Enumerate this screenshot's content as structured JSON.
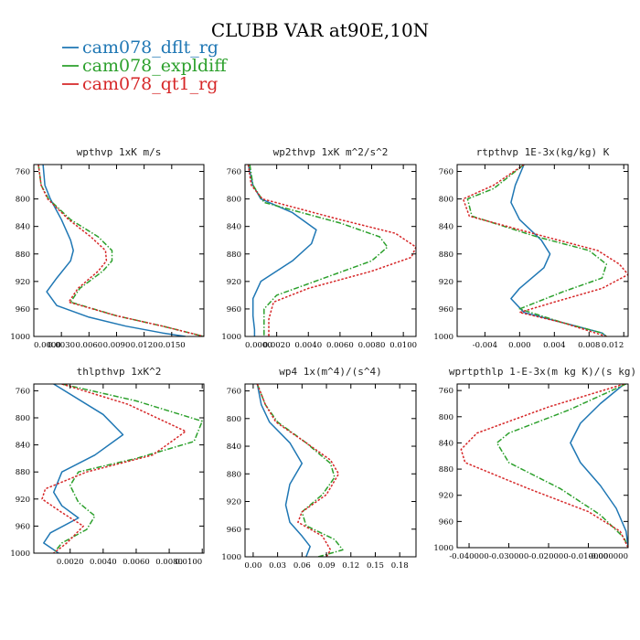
{
  "figure": {
    "title": "CLUBB VAR at90E,10N",
    "legend": [
      {
        "name": "cam078_dflt_rg",
        "color": "#1f77b4",
        "dash": "solid"
      },
      {
        "name": "cam078_expldiff",
        "color": "#2ca02c",
        "dash": "dashdot"
      },
      {
        "name": "cam078_qt1_rg",
        "color": "#d62728",
        "dash": "dotted"
      }
    ]
  },
  "chart_data": [
    {
      "type": "line",
      "title": "wpthvp  1xK m/s",
      "xlim": [
        0,
        0.0185
      ],
      "ylim": [
        1000,
        750
      ],
      "xticks": [
        0.0,
        0.003,
        0.006,
        0.009,
        0.012,
        0.015
      ],
      "xticklabels": [
        "0.0000",
        "0.0030",
        "0.0060",
        "0.0090",
        "0.0120",
        "0.0150"
      ],
      "yticks": [
        760,
        800,
        840,
        880,
        920,
        960,
        1000
      ],
      "series": [
        {
          "points": [
            [
              0.001,
              750
            ],
            [
              0.0012,
              780
            ],
            [
              0.0018,
              800
            ],
            [
              0.003,
              830
            ],
            [
              0.004,
              860
            ],
            [
              0.0043,
              875
            ],
            [
              0.004,
              890
            ],
            [
              0.0025,
              915
            ],
            [
              0.0014,
              935
            ],
            [
              0.0025,
              955
            ],
            [
              0.006,
              972
            ],
            [
              0.01,
              985
            ],
            [
              0.014,
              995
            ],
            [
              0.0165,
              1000
            ]
          ]
        },
        {
          "points": [
            [
              0.0005,
              750
            ],
            [
              0.0008,
              780
            ],
            [
              0.0016,
              800
            ],
            [
              0.004,
              830
            ],
            [
              0.007,
              855
            ],
            [
              0.0085,
              875
            ],
            [
              0.0085,
              890
            ],
            [
              0.0075,
              905
            ],
            [
              0.005,
              930
            ],
            [
              0.004,
              950
            ],
            [
              0.009,
              970
            ],
            [
              0.014,
              985
            ],
            [
              0.0185,
              1000
            ]
          ]
        },
        {
          "points": [
            [
              0.0005,
              750
            ],
            [
              0.0008,
              780
            ],
            [
              0.0015,
              800
            ],
            [
              0.0038,
              830
            ],
            [
              0.0062,
              855
            ],
            [
              0.0078,
              875
            ],
            [
              0.0079,
              890
            ],
            [
              0.007,
              905
            ],
            [
              0.0048,
              930
            ],
            [
              0.0038,
              950
            ],
            [
              0.009,
              970
            ],
            [
              0.014,
              985
            ],
            [
              0.0185,
              1000
            ]
          ]
        }
      ]
    },
    {
      "type": "line",
      "title": "wp2thvp  1xK m^2/s^2",
      "xlim": [
        0,
        0.0108
      ],
      "ylim": [
        1000,
        750
      ],
      "xticks": [
        0.0,
        0.002,
        0.004,
        0.006,
        0.008,
        0.01
      ],
      "xticklabels": [
        "0.0000",
        "0.0020",
        "0.0040",
        "0.0060",
        "0.0080",
        "0.0100"
      ],
      "yticks": [
        760,
        800,
        840,
        880,
        920,
        960,
        1000
      ],
      "series": [
        {
          "points": [
            [
              0.0002,
              750
            ],
            [
              0.0005,
              780
            ],
            [
              0.001,
              800
            ],
            [
              0.003,
              820
            ],
            [
              0.0045,
              845
            ],
            [
              0.0042,
              865
            ],
            [
              0.003,
              890
            ],
            [
              0.001,
              920
            ],
            [
              0.0005,
              945
            ],
            [
              0.0005,
              970
            ],
            [
              0.0006,
              990
            ],
            [
              0.0006,
              1000
            ]
          ]
        },
        {
          "points": [
            [
              0.0003,
              750
            ],
            [
              0.0005,
              780
            ],
            [
              0.0012,
              805
            ],
            [
              0.006,
              835
            ],
            [
              0.0085,
              855
            ],
            [
              0.009,
              870
            ],
            [
              0.008,
              890
            ],
            [
              0.005,
              915
            ],
            [
              0.002,
              940
            ],
            [
              0.0012,
              960
            ],
            [
              0.0012,
              980
            ],
            [
              0.0012,
              1000
            ]
          ]
        },
        {
          "points": [
            [
              0.0002,
              750
            ],
            [
              0.0004,
              780
            ],
            [
              0.0011,
              800
            ],
            [
              0.006,
              830
            ],
            [
              0.0095,
              850
            ],
            [
              0.0108,
              870
            ],
            [
              0.0105,
              885
            ],
            [
              0.008,
              905
            ],
            [
              0.004,
              930
            ],
            [
              0.0018,
              950
            ],
            [
              0.0015,
              975
            ],
            [
              0.0015,
              1000
            ]
          ]
        }
      ]
    },
    {
      "type": "line",
      "title": "rtpthvp  1E-3x(kg/kg) K",
      "xlim": [
        -0.0072,
        0.0125
      ],
      "ylim": [
        1000,
        750
      ],
      "xticks": [
        -0.004,
        0.0,
        0.004,
        0.008,
        0.012
      ],
      "xticklabels": [
        "-0.004",
        "0.000",
        "0.004",
        "0.008",
        "0.012"
      ],
      "yticks": [
        760,
        800,
        840,
        880,
        920,
        960,
        1000
      ],
      "series": [
        {
          "points": [
            [
              0.0005,
              750
            ],
            [
              -0.0005,
              780
            ],
            [
              -0.001,
              805
            ],
            [
              0.0,
              830
            ],
            [
              0.0025,
              860
            ],
            [
              0.0035,
              880
            ],
            [
              0.0028,
              900
            ],
            [
              0.0,
              930
            ],
            [
              -0.001,
              945
            ],
            [
              0.0005,
              965
            ],
            [
              0.005,
              980
            ],
            [
              0.0095,
              995
            ],
            [
              0.01,
              1000
            ]
          ]
        },
        {
          "points": [
            [
              0.0005,
              750
            ],
            [
              -0.003,
              785
            ],
            [
              -0.006,
              800
            ],
            [
              -0.0055,
              825
            ],
            [
              0.002,
              855
            ],
            [
              0.008,
              875
            ],
            [
              0.01,
              895
            ],
            [
              0.0095,
              915
            ],
            [
              0.005,
              935
            ],
            [
              0.0,
              960
            ],
            [
              0.005,
              980
            ],
            [
              0.0095,
              995
            ],
            [
              0.01,
              1000
            ]
          ]
        },
        {
          "points": [
            [
              0.0005,
              750
            ],
            [
              -0.003,
              780
            ],
            [
              -0.0065,
              800
            ],
            [
              -0.0058,
              825
            ],
            [
              0.003,
              855
            ],
            [
              0.009,
              875
            ],
            [
              0.0115,
              895
            ],
            [
              0.0125,
              910
            ],
            [
              0.0095,
              930
            ],
            [
              0.004,
              950
            ],
            [
              0.0,
              965
            ],
            [
              0.005,
              980
            ],
            [
              0.01,
              1000
            ]
          ]
        }
      ]
    },
    {
      "type": "line",
      "title": "thlpthvp  1xK^2",
      "xlim": [
        -0.0002,
        0.0101
      ],
      "ylim": [
        1000,
        750
      ],
      "xticks": [
        0.002,
        0.004,
        0.006,
        0.008,
        0.01
      ],
      "xticklabels": [
        "0.0020",
        "0.0040",
        "0.0060",
        "0.0080",
        "0.0100"
      ],
      "yticks": [
        760,
        800,
        840,
        880,
        920,
        960,
        1000
      ],
      "series": [
        {
          "points": [
            [
              0.001,
              750
            ],
            [
              0.004,
              795
            ],
            [
              0.0052,
              825
            ],
            [
              0.0035,
              855
            ],
            [
              0.0015,
              880
            ],
            [
              0.001,
              910
            ],
            [
              0.0015,
              930
            ],
            [
              0.0025,
              948
            ],
            [
              0.0008,
              970
            ],
            [
              0.0004,
              985
            ],
            [
              0.001,
              995
            ],
            [
              0.0013,
              1000
            ]
          ]
        },
        {
          "points": [
            [
              0.0015,
              750
            ],
            [
              0.006,
              775
            ],
            [
              0.01,
              805
            ],
            [
              0.0095,
              835
            ],
            [
              0.006,
              860
            ],
            [
              0.0025,
              880
            ],
            [
              0.002,
              900
            ],
            [
              0.0025,
              925
            ],
            [
              0.0035,
              945
            ],
            [
              0.003,
              965
            ],
            [
              0.0015,
              985
            ],
            [
              0.001,
              1000
            ]
          ]
        },
        {
          "points": [
            [
              0.0015,
              750
            ],
            [
              0.0055,
              780
            ],
            [
              0.009,
              820
            ],
            [
              0.007,
              855
            ],
            [
              0.003,
              880
            ],
            [
              0.0005,
              905
            ],
            [
              0.0003,
              920
            ],
            [
              0.0015,
              940
            ],
            [
              0.0028,
              960
            ],
            [
              0.0018,
              985
            ],
            [
              0.001,
              1000
            ]
          ]
        }
      ]
    },
    {
      "type": "line",
      "title": "wp4  1x(m^4)/(s^4)",
      "xlim": [
        -0.01,
        0.2
      ],
      "ylim": [
        1000,
        750
      ],
      "xticks": [
        0.0,
        0.03,
        0.06,
        0.09,
        0.12,
        0.15,
        0.18
      ],
      "xticklabels": [
        "0.00",
        "0.03",
        "0.06",
        "0.09",
        "0.12",
        "0.15",
        "0.18"
      ],
      "yticks": [
        760,
        800,
        840,
        880,
        920,
        960,
        1000
      ],
      "series": [
        {
          "points": [
            [
              0.005,
              750
            ],
            [
              0.01,
              780
            ],
            [
              0.02,
              805
            ],
            [
              0.045,
              835
            ],
            [
              0.06,
              865
            ],
            [
              0.045,
              895
            ],
            [
              0.04,
              925
            ],
            [
              0.045,
              950
            ],
            [
              0.06,
              970
            ],
            [
              0.07,
              985
            ],
            [
              0.065,
              1000
            ]
          ]
        },
        {
          "points": [
            [
              0.005,
              750
            ],
            [
              0.015,
              780
            ],
            [
              0.03,
              805
            ],
            [
              0.065,
              835
            ],
            [
              0.095,
              865
            ],
            [
              0.1,
              885
            ],
            [
              0.085,
              910
            ],
            [
              0.06,
              935
            ],
            [
              0.065,
              955
            ],
            [
              0.1,
              975
            ],
            [
              0.11,
              990
            ],
            [
              0.08,
              1000
            ]
          ]
        },
        {
          "points": [
            [
              0.005,
              750
            ],
            [
              0.015,
              780
            ],
            [
              0.028,
              805
            ],
            [
              0.065,
              835
            ],
            [
              0.095,
              860
            ],
            [
              0.105,
              880
            ],
            [
              0.09,
              910
            ],
            [
              0.06,
              935
            ],
            [
              0.055,
              950
            ],
            [
              0.085,
              970
            ],
            [
              0.095,
              990
            ],
            [
              0.09,
              1000
            ]
          ]
        }
      ]
    },
    {
      "type": "line",
      "title": "wprtpthlp  1-E-3x(m kg K)/(s kg)",
      "xlim": [
        -0.043,
        0.0
      ],
      "ylim": [
        1000,
        750
      ],
      "xticks": [
        -0.04,
        -0.03,
        -0.02,
        -0.01,
        0.0
      ],
      "xticklabels": [
        "-0.040000",
        "-0.030000",
        "-0.020000",
        "-0.010000",
        "-0.000000"
      ],
      "yticks": [
        760,
        800,
        840,
        880,
        920,
        960,
        1000
      ],
      "series": [
        {
          "points": [
            [
              -0.001,
              750
            ],
            [
              -0.007,
              780
            ],
            [
              -0.012,
              810
            ],
            [
              -0.0145,
              840
            ],
            [
              -0.012,
              870
            ],
            [
              -0.007,
              905
            ],
            [
              -0.003,
              940
            ],
            [
              -0.0005,
              975
            ],
            [
              0.0,
              1000
            ]
          ]
        },
        {
          "points": [
            [
              -0.0005,
              750
            ],
            [
              -0.015,
              790
            ],
            [
              -0.03,
              825
            ],
            [
              -0.033,
              840
            ],
            [
              -0.03,
              870
            ],
            [
              -0.017,
              910
            ],
            [
              -0.007,
              950
            ],
            [
              -0.001,
              985
            ],
            [
              0.0,
              1000
            ]
          ]
        },
        {
          "points": [
            [
              -0.001,
              750
            ],
            [
              -0.02,
              785
            ],
            [
              -0.038,
              825
            ],
            [
              -0.042,
              850
            ],
            [
              -0.041,
              870
            ],
            [
              -0.025,
              910
            ],
            [
              -0.01,
              945
            ],
            [
              -0.002,
              975
            ],
            [
              0.0,
              1000
            ]
          ]
        }
      ]
    }
  ]
}
